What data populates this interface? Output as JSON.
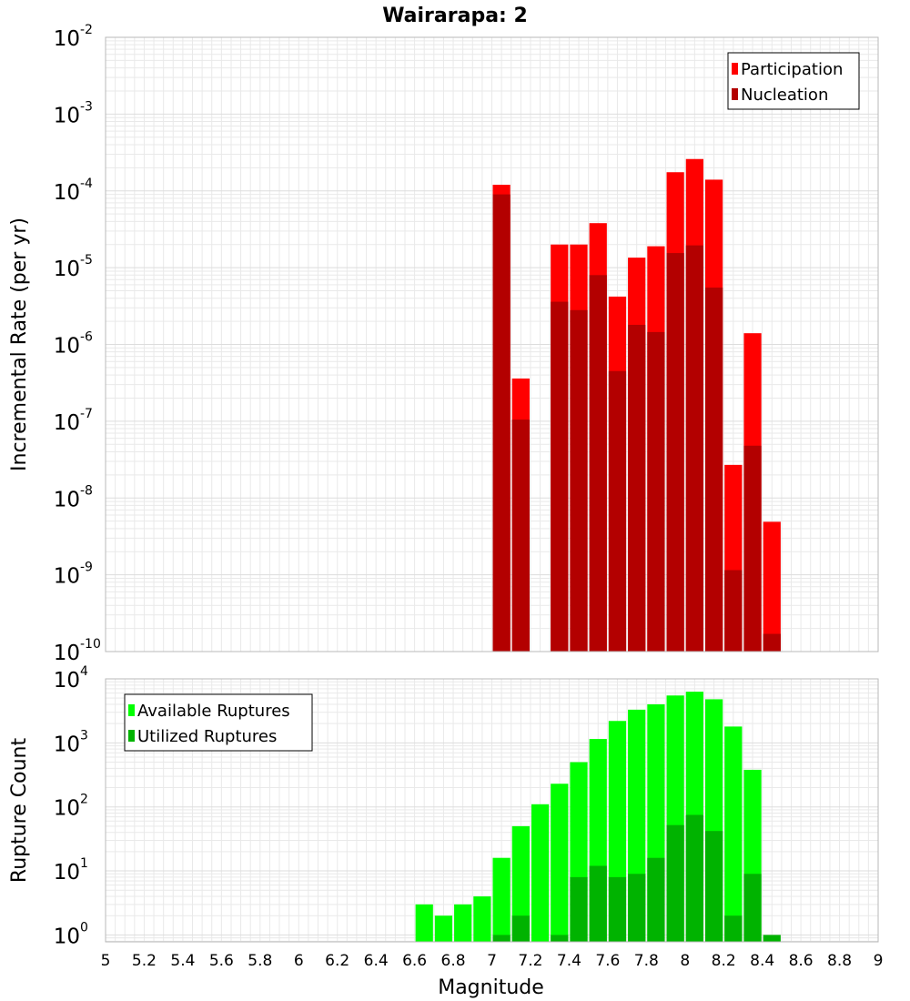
{
  "title": "Wairarapa: 2",
  "chart_data": [
    {
      "type": "bar",
      "panel": "top",
      "ylabel": "Incremental Rate (per yr)",
      "yscale": "log",
      "ylim": [
        1e-10,
        0.01
      ],
      "xlim": [
        5,
        9
      ],
      "y_ticks": [
        {
          "base": "10",
          "exp": "-10",
          "value": 1e-10
        },
        {
          "base": "10",
          "exp": "-9",
          "value": 1e-09
        },
        {
          "base": "10",
          "exp": "-8",
          "value": 1e-08
        },
        {
          "base": "10",
          "exp": "-7",
          "value": 1e-07
        },
        {
          "base": "10",
          "exp": "-6",
          "value": 1e-06
        },
        {
          "base": "10",
          "exp": "-5",
          "value": 1e-05
        },
        {
          "base": "10",
          "exp": "-4",
          "value": 0.0001
        },
        {
          "base": "10",
          "exp": "-3",
          "value": 0.001
        },
        {
          "base": "10",
          "exp": "-2",
          "value": 0.01
        }
      ],
      "legend": {
        "position": "top-right",
        "entries": [
          {
            "label": "Participation",
            "color": "#ff0000"
          },
          {
            "label": "Nucleation",
            "color": "#b30000"
          }
        ]
      },
      "series": [
        {
          "name": "Participation",
          "color": "#ff0000",
          "x": [
            7.05,
            7.15,
            7.35,
            7.45,
            7.55,
            7.65,
            7.75,
            7.85,
            7.95,
            8.05,
            8.15,
            8.25,
            8.35,
            8.45
          ],
          "values": [
            0.00012,
            3.6e-07,
            2e-05,
            2e-05,
            3.8e-05,
            4.2e-06,
            1.35e-05,
            1.9e-05,
            0.000175,
            0.00026,
            0.00014,
            2.7e-08,
            1.4e-06,
            4.9e-09
          ]
        },
        {
          "name": "Nucleation",
          "color": "#b30000",
          "x": [
            7.05,
            7.15,
            7.35,
            7.45,
            7.55,
            7.65,
            7.75,
            7.85,
            7.95,
            8.05,
            8.15,
            8.25,
            8.35,
            8.45
          ],
          "values": [
            9e-05,
            1.05e-07,
            3.6e-06,
            2.8e-06,
            8e-06,
            4.5e-07,
            1.8e-06,
            1.45e-06,
            1.55e-05,
            1.95e-05,
            5.5e-06,
            1.15e-09,
            4.8e-08,
            1.7e-10
          ]
        }
      ]
    },
    {
      "type": "bar",
      "panel": "bottom",
      "xlabel": "Magnitude",
      "ylabel": "Rupture Count",
      "yscale": "log",
      "ylim": [
        0.78,
        10000
      ],
      "xlim": [
        5,
        9
      ],
      "y_ticks": [
        {
          "base": "10",
          "exp": "0",
          "value": 1
        },
        {
          "base": "10",
          "exp": "1",
          "value": 10
        },
        {
          "base": "10",
          "exp": "2",
          "value": 100
        },
        {
          "base": "10",
          "exp": "3",
          "value": 1000
        },
        {
          "base": "10",
          "exp": "4",
          "value": 10000
        }
      ],
      "x_ticks": [
        "5",
        "5.2",
        "5.4",
        "5.6",
        "5.8",
        "6",
        "6.2",
        "6.4",
        "6.6",
        "6.8",
        "7",
        "7.2",
        "7.4",
        "7.6",
        "7.8",
        "8",
        "8.2",
        "8.4",
        "8.6",
        "8.8",
        "9"
      ],
      "legend": {
        "position": "top-left",
        "entries": [
          {
            "label": "Available Ruptures",
            "color": "#00ff00"
          },
          {
            "label": "Utilized Ruptures",
            "color": "#00b300"
          }
        ]
      },
      "series": [
        {
          "name": "Available Ruptures",
          "color": "#00ff00",
          "x": [
            6.65,
            6.75,
            6.85,
            6.95,
            7.05,
            7.15,
            7.25,
            7.35,
            7.45,
            7.55,
            7.65,
            7.75,
            7.85,
            7.95,
            8.05,
            8.15,
            8.25,
            8.35
          ],
          "values": [
            3,
            2,
            3,
            4,
            16,
            50,
            110,
            230,
            500,
            1150,
            2200,
            3300,
            4000,
            5500,
            6300,
            4800,
            1800,
            380
          ]
        },
        {
          "name": "Utilized Ruptures",
          "color": "#00b300",
          "x": [
            7.05,
            7.15,
            7.35,
            7.45,
            7.55,
            7.65,
            7.75,
            7.85,
            7.95,
            8.05,
            8.15,
            8.25,
            8.35,
            8.45
          ],
          "values": [
            1,
            2,
            1,
            8,
            12,
            8,
            9,
            16,
            52,
            75,
            42,
            2,
            9,
            1
          ]
        }
      ]
    }
  ]
}
